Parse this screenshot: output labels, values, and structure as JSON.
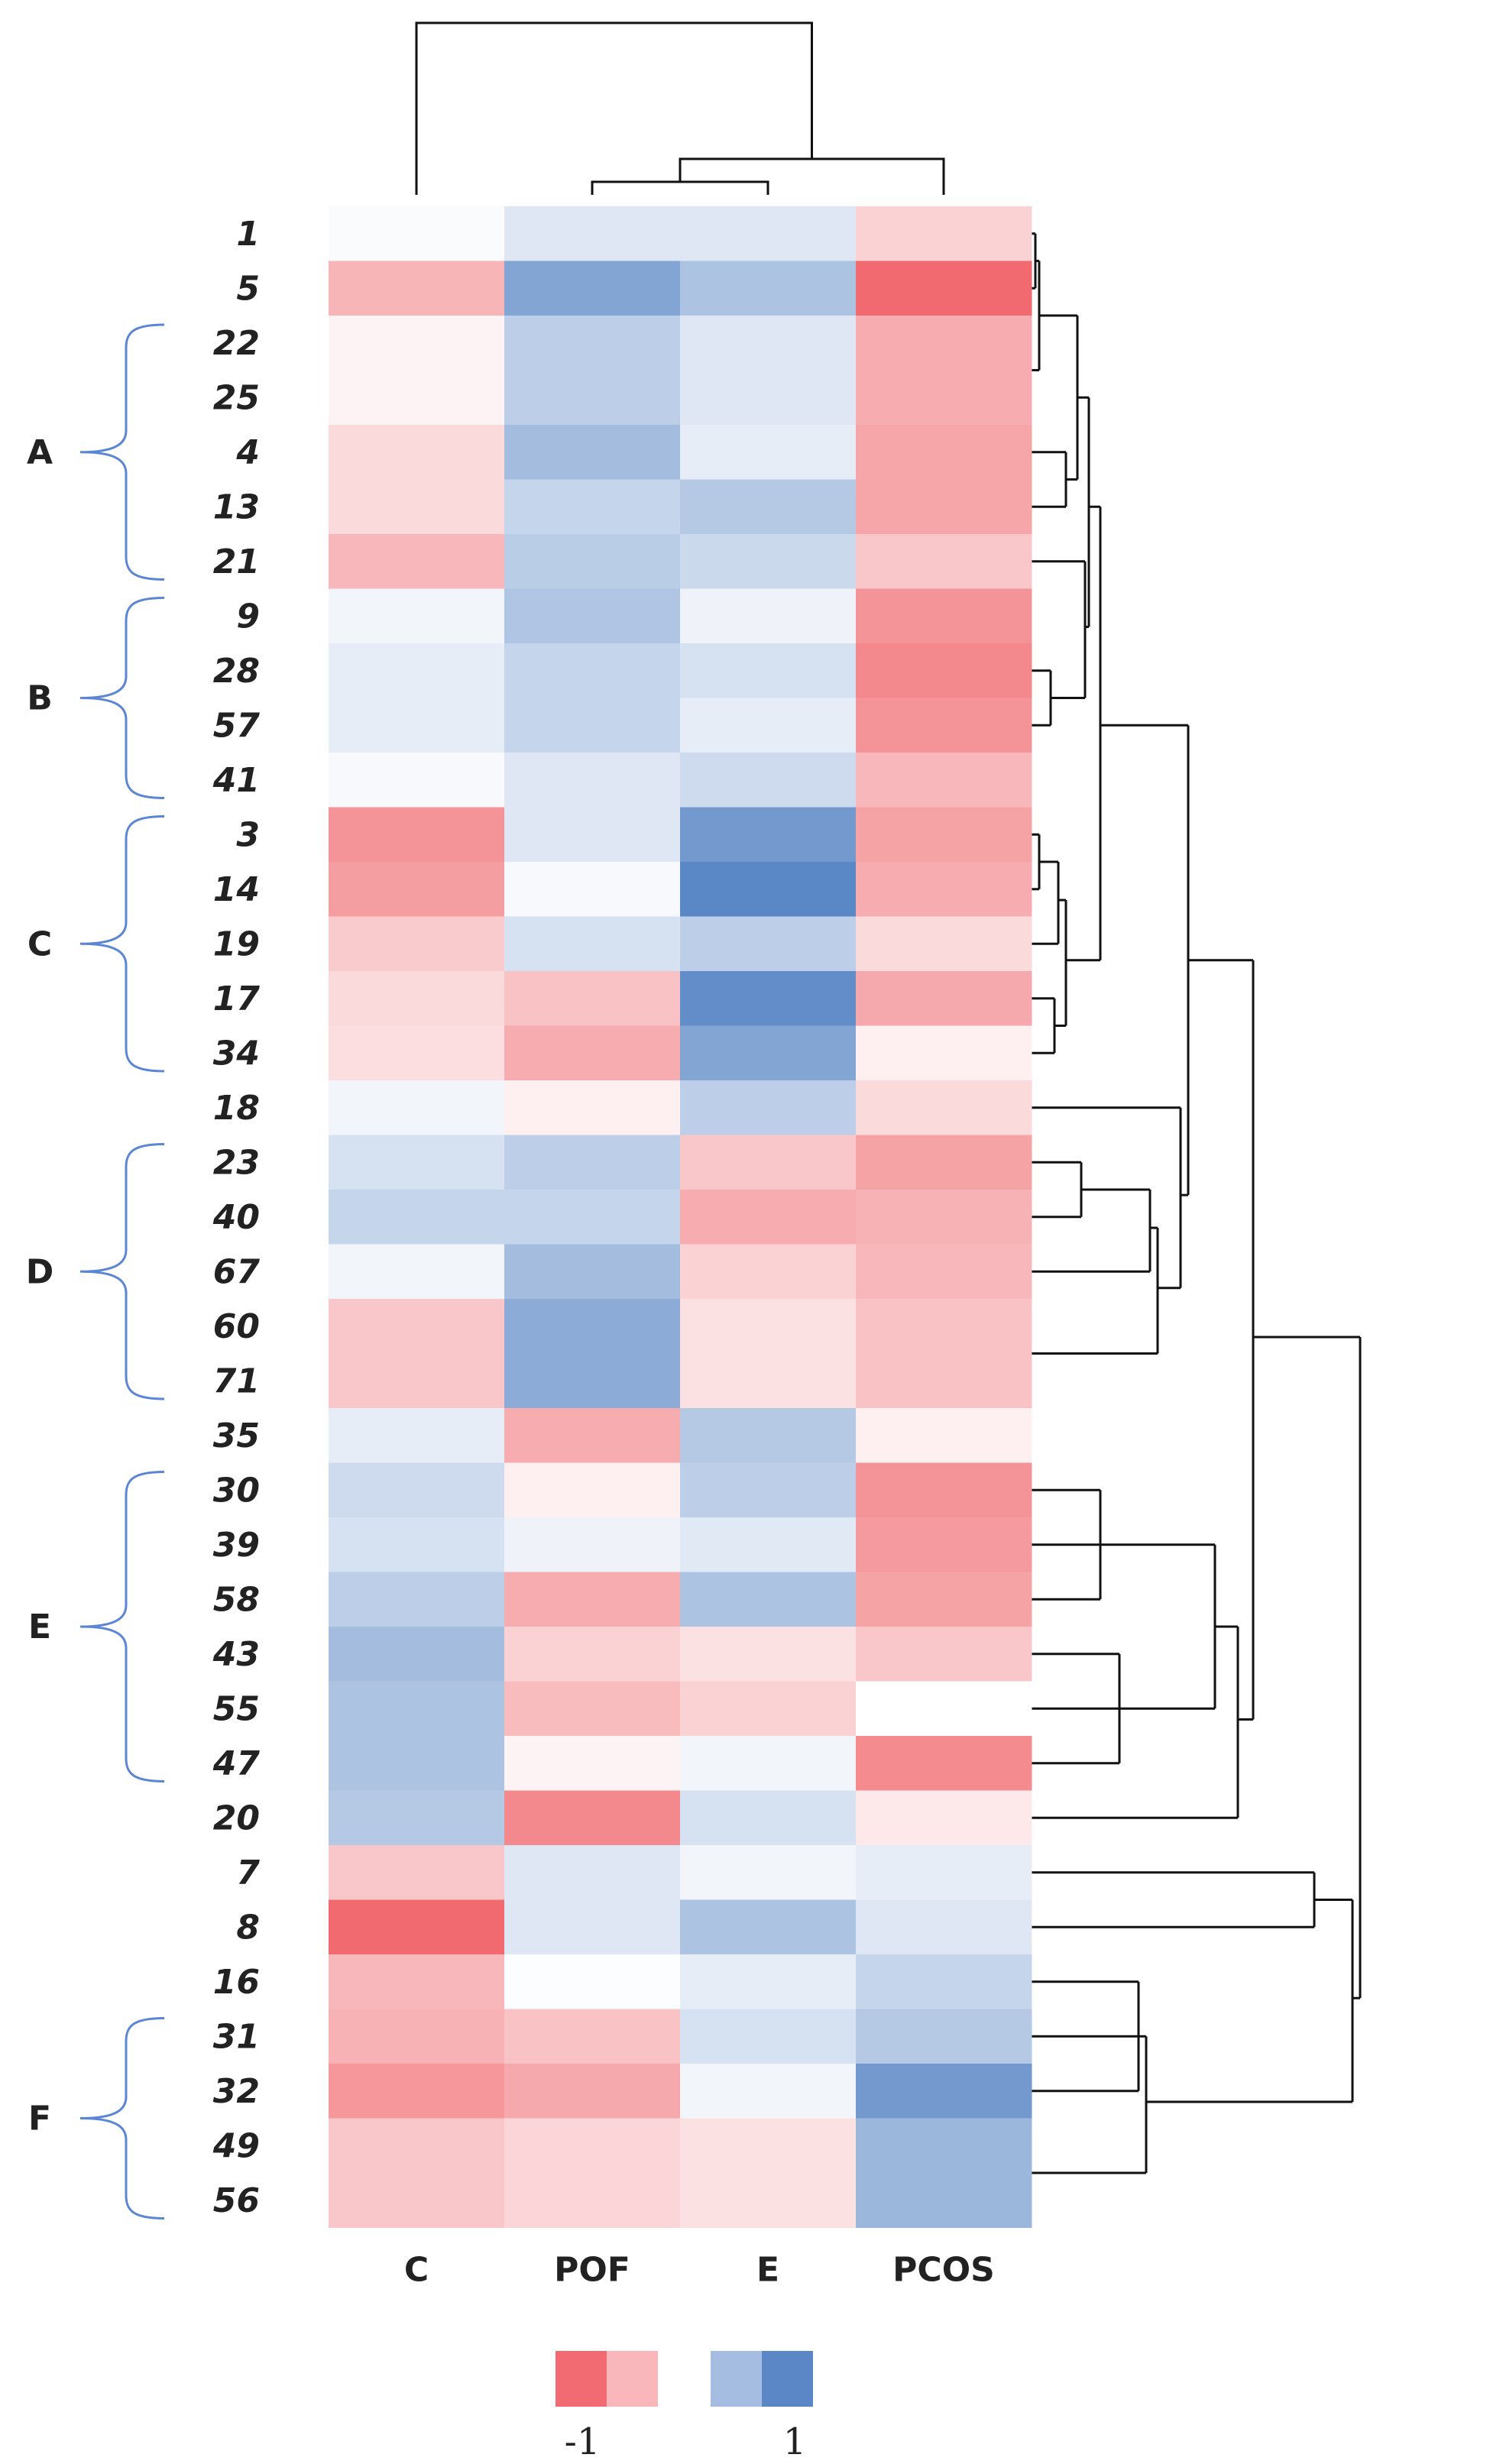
{
  "chart_data": {
    "type": "heatmap",
    "title": "",
    "columns": [
      "C",
      "POF",
      "E",
      "PCOS"
    ],
    "rows": [
      "1",
      "5",
      "22",
      "25",
      "4",
      "13",
      "21",
      "9",
      "28",
      "57",
      "41",
      "3",
      "14",
      "19",
      "17",
      "34",
      "18",
      "23",
      "40",
      "67",
      "60",
      "71",
      "35",
      "30",
      "39",
      "58",
      "43",
      "55",
      "47",
      "20",
      "7",
      "8",
      "16",
      "31",
      "32",
      "49",
      "56"
    ],
    "values": [
      [
        0.03,
        0.2,
        0.2,
        -0.3
      ],
      [
        -0.5,
        0.75,
        0.5,
        -1.0
      ],
      [
        -0.08,
        0.4,
        0.2,
        -0.55
      ],
      [
        -0.08,
        0.4,
        0.2,
        -0.55
      ],
      [
        -0.25,
        0.55,
        0.15,
        -0.6
      ],
      [
        -0.25,
        0.35,
        0.45,
        -0.6
      ],
      [
        -0.48,
        0.42,
        0.32,
        -0.38
      ],
      [
        0.08,
        0.48,
        0.1,
        -0.72
      ],
      [
        0.15,
        0.35,
        0.25,
        -0.8
      ],
      [
        0.15,
        0.35,
        0.15,
        -0.72
      ],
      [
        0.05,
        0.2,
        0.3,
        -0.48
      ],
      [
        -0.72,
        0.2,
        0.85,
        -0.62
      ],
      [
        -0.65,
        0.05,
        1.0,
        -0.55
      ],
      [
        -0.35,
        0.25,
        0.4,
        -0.25
      ],
      [
        -0.25,
        -0.4,
        0.95,
        -0.58
      ],
      [
        -0.22,
        -0.55,
        0.75,
        -0.1
      ],
      [
        0.08,
        -0.1,
        0.4,
        -0.25
      ],
      [
        0.25,
        0.4,
        -0.38,
        -0.62
      ],
      [
        0.35,
        0.35,
        -0.55,
        -0.52
      ],
      [
        0.08,
        0.55,
        -0.3,
        -0.48
      ],
      [
        -0.38,
        0.7,
        -0.2,
        -0.4
      ],
      [
        -0.38,
        0.7,
        -0.2,
        -0.4
      ],
      [
        0.15,
        -0.55,
        0.45,
        -0.1
      ],
      [
        0.3,
        -0.1,
        0.4,
        -0.72
      ],
      [
        0.25,
        0.1,
        0.18,
        -0.68
      ],
      [
        0.4,
        -0.55,
        0.5,
        -0.62
      ],
      [
        0.55,
        -0.3,
        -0.2,
        -0.38
      ],
      [
        0.5,
        -0.45,
        -0.3,
        0.0
      ],
      [
        0.5,
        -0.08,
        0.08,
        -0.78
      ],
      [
        0.45,
        -0.8,
        0.25,
        -0.15
      ],
      [
        -0.38,
        0.2,
        0.08,
        0.15
      ],
      [
        -1.0,
        0.2,
        0.5,
        0.2
      ],
      [
        -0.48,
        0.02,
        0.15,
        0.35
      ],
      [
        -0.52,
        -0.4,
        0.25,
        0.45
      ],
      [
        -0.7,
        -0.58,
        0.08,
        0.85
      ],
      [
        -0.38,
        -0.28,
        -0.2,
        0.6
      ],
      [
        -0.38,
        -0.28,
        -0.2,
        0.6
      ]
    ],
    "groups": [
      {
        "label": "A",
        "from": "22",
        "to": "21"
      },
      {
        "label": "B",
        "from": "9",
        "to": "41"
      },
      {
        "label": "C",
        "from": "3",
        "to": "34"
      },
      {
        "label": "D",
        "from": "23",
        "to": "71"
      },
      {
        "label": "E",
        "from": "30",
        "to": "47"
      },
      {
        "label": "F",
        "from": "31",
        "to": "56"
      }
    ],
    "color_scale": {
      "min": -1,
      "max": 1,
      "min_label": "-1",
      "max_label": "1",
      "low_color": "#f06a70",
      "mid_color": "#ffffff",
      "high_color": "#5a87c5"
    },
    "dendrograms": {
      "columns": "top",
      "rows": "right"
    }
  }
}
